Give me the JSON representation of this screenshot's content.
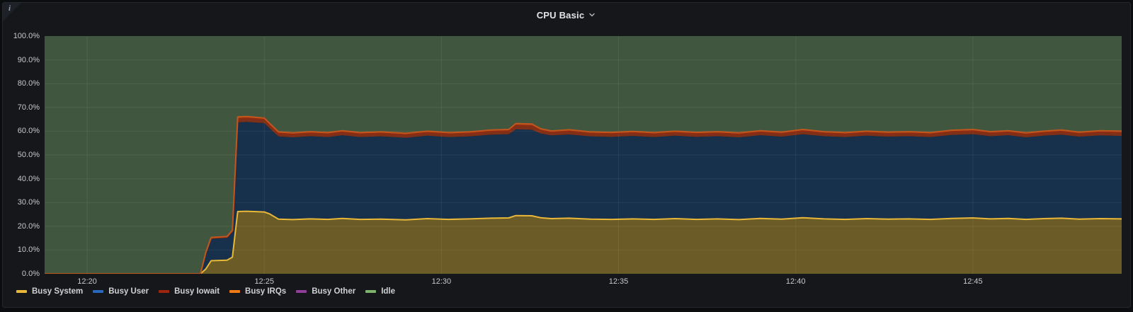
{
  "panel": {
    "title": "CPU Basic",
    "info_corner_glyph": "i"
  },
  "chart_data": {
    "type": "area",
    "stacked": true,
    "unit": "percent",
    "title": "CPU Basic",
    "ylim": [
      0,
      100
    ],
    "grid": true,
    "legend_position": "bottom-left",
    "y_tick_labels": [
      "100.0%",
      "90.0%",
      "80.0%",
      "70.0%",
      "60.0%",
      "50.0%",
      "40.0%",
      "30.0%",
      "20.0%",
      "10.0%",
      "0.0%"
    ],
    "x_domain_minutes_after_12": [
      18.8,
      49.2
    ],
    "x_ticks": [
      {
        "t": 20,
        "label": "12:20"
      },
      {
        "t": 25,
        "label": "12:25"
      },
      {
        "t": 30,
        "label": "12:30"
      },
      {
        "t": 35,
        "label": "12:35"
      },
      {
        "t": 40,
        "label": "12:40"
      },
      {
        "t": 45,
        "label": "12:45"
      }
    ],
    "x": [
      18.8,
      23.2,
      23.35,
      23.5,
      23.95,
      24.1,
      24.25,
      24.5,
      25.0,
      25.15,
      25.4,
      25.8,
      26.3,
      26.8,
      27.2,
      27.7,
      28.3,
      29.0,
      29.6,
      30.2,
      30.8,
      31.4,
      31.9,
      32.1,
      32.55,
      32.8,
      33.1,
      33.6,
      34.2,
      34.8,
      35.4,
      36.0,
      36.6,
      37.2,
      37.8,
      38.4,
      39.0,
      39.6,
      40.2,
      40.8,
      41.4,
      42.0,
      42.6,
      43.2,
      43.8,
      44.4,
      45.0,
      45.5,
      46.0,
      46.5,
      47.0,
      47.5,
      48.0,
      48.6,
      49.2
    ],
    "series": [
      {
        "name": "Busy System",
        "legend_color": "#EAB839",
        "fill": "#6b5b27",
        "line": "#EAB839",
        "values": [
          0,
          0,
          2.0,
          5.5,
          5.7,
          7.0,
          26.2,
          26.3,
          26.0,
          25.2,
          23.0,
          22.8,
          23.1,
          22.9,
          23.3,
          22.9,
          23.0,
          22.7,
          23.2,
          22.9,
          23.1,
          23.4,
          23.5,
          24.5,
          24.4,
          23.6,
          23.2,
          23.4,
          23.0,
          22.9,
          23.1,
          22.9,
          23.2,
          22.9,
          23.1,
          22.8,
          23.3,
          23.0,
          23.6,
          23.1,
          22.9,
          23.2,
          23.0,
          23.1,
          22.9,
          23.3,
          23.5,
          23.1,
          23.3,
          22.9,
          23.2,
          23.4,
          23.0,
          23.2,
          23.1
        ]
      },
      {
        "name": "Busy User",
        "legend_color": "#2468C0",
        "fill": "#17304b",
        "line": null,
        "values": [
          0,
          0,
          6.5,
          9.2,
          9.4,
          10.5,
          37.5,
          37.6,
          37.4,
          36.0,
          34.8,
          34.6,
          34.8,
          34.6,
          35.0,
          34.6,
          34.8,
          34.5,
          34.9,
          34.6,
          34.7,
          35.1,
          35.2,
          36.3,
          36.2,
          35.4,
          35.0,
          35.2,
          34.8,
          34.7,
          34.9,
          34.6,
          34.9,
          34.7,
          34.8,
          34.6,
          35.0,
          34.7,
          35.1,
          34.8,
          34.6,
          34.9,
          34.7,
          34.8,
          34.6,
          35.1,
          35.2,
          34.8,
          35.0,
          34.5,
          34.9,
          35.1,
          34.7,
          35.0,
          34.9
        ]
      },
      {
        "name": "Busy Iowait",
        "legend_color": "#A0250F",
        "fill": "#7e3018",
        "line": "#8f2c12",
        "values": [
          0,
          0,
          0.3,
          0.4,
          0.4,
          0.5,
          1.6,
          1.6,
          1.5,
          1.5,
          1.3,
          1.3,
          1.3,
          1.3,
          1.3,
          1.3,
          1.3,
          1.3,
          1.3,
          1.3,
          1.3,
          1.4,
          1.4,
          1.7,
          1.7,
          1.4,
          1.3,
          1.4,
          1.3,
          1.3,
          1.3,
          1.3,
          1.3,
          1.3,
          1.3,
          1.3,
          1.3,
          1.3,
          1.4,
          1.3,
          1.3,
          1.3,
          1.3,
          1.3,
          1.3,
          1.4,
          1.4,
          1.3,
          1.3,
          1.3,
          1.3,
          1.4,
          1.3,
          1.4,
          1.4
        ]
      },
      {
        "name": "Busy IRQs",
        "legend_color": "#EF7A16",
        "fill": "#a8511e",
        "line": "#c2561d",
        "values": [
          0,
          0,
          0.2,
          0.2,
          0.2,
          0.3,
          0.7,
          0.7,
          0.6,
          0.6,
          0.6,
          0.6,
          0.6,
          0.6,
          0.6,
          0.6,
          0.6,
          0.6,
          0.6,
          0.6,
          0.6,
          0.6,
          0.6,
          0.7,
          0.7,
          0.6,
          0.6,
          0.6,
          0.6,
          0.6,
          0.6,
          0.6,
          0.6,
          0.6,
          0.6,
          0.6,
          0.6,
          0.6,
          0.6,
          0.6,
          0.6,
          0.6,
          0.6,
          0.6,
          0.6,
          0.6,
          0.6,
          0.6,
          0.6,
          0.6,
          0.6,
          0.6,
          0.6,
          0.6,
          0.6
        ]
      },
      {
        "name": "Busy Other",
        "legend_color": "#8F3F98",
        "fill": "#6d3585",
        "line": null,
        "values": [
          0,
          0,
          0,
          0,
          0,
          0,
          0,
          0,
          0,
          0,
          0,
          0,
          0,
          0,
          0,
          0,
          0,
          0,
          0,
          0,
          0,
          0,
          0,
          0,
          0,
          0,
          0,
          0,
          0,
          0,
          0,
          0,
          0,
          0,
          0,
          0,
          0,
          0,
          0,
          0,
          0,
          0,
          0,
          0,
          0,
          0,
          0,
          0,
          0,
          0,
          0,
          0,
          0,
          0,
          0
        ]
      },
      {
        "name": "Idle",
        "legend_color": "#7EB26D",
        "fill": "#41563f",
        "line": null,
        "remainder_to_100": true,
        "values": null
      }
    ]
  }
}
